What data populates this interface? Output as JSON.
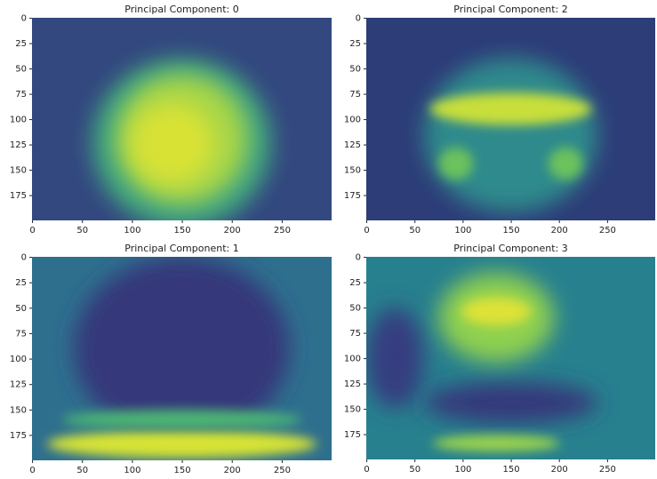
{
  "chart_data": [
    {
      "type": "image",
      "title": "Principal Component: 0",
      "xlim": [
        -0.5,
        299.5
      ],
      "ylim": [
        199.5,
        -0.5
      ],
      "xticks": [
        0,
        50,
        100,
        150,
        200,
        250
      ],
      "yticks": [
        0,
        25,
        50,
        75,
        100,
        125,
        150,
        175
      ]
    },
    {
      "type": "image",
      "title": "Principal Component: 2",
      "xlim": [
        -0.5,
        299.5
      ],
      "ylim": [
        199.5,
        -0.5
      ],
      "xticks": [
        0,
        50,
        100,
        150,
        200,
        250
      ],
      "yticks": [
        0,
        25,
        50,
        75,
        100,
        125,
        150,
        175
      ]
    },
    {
      "type": "image",
      "title": "Principal Component: 1",
      "xlim": [
        -0.5,
        299.5
      ],
      "ylim": [
        199.5,
        -0.5
      ],
      "xticks": [
        0,
        50,
        100,
        150,
        200,
        250
      ],
      "yticks": [
        0,
        25,
        50,
        75,
        100,
        125,
        150,
        175
      ]
    },
    {
      "type": "image",
      "title": "Principal Component: 3",
      "xlim": [
        -0.5,
        299.5
      ],
      "ylim": [
        199.5,
        -0.5
      ],
      "xticks": [
        0,
        50,
        100,
        150,
        200,
        250
      ],
      "yticks": [
        0,
        25,
        50,
        75,
        100,
        125,
        150,
        175
      ]
    }
  ]
}
